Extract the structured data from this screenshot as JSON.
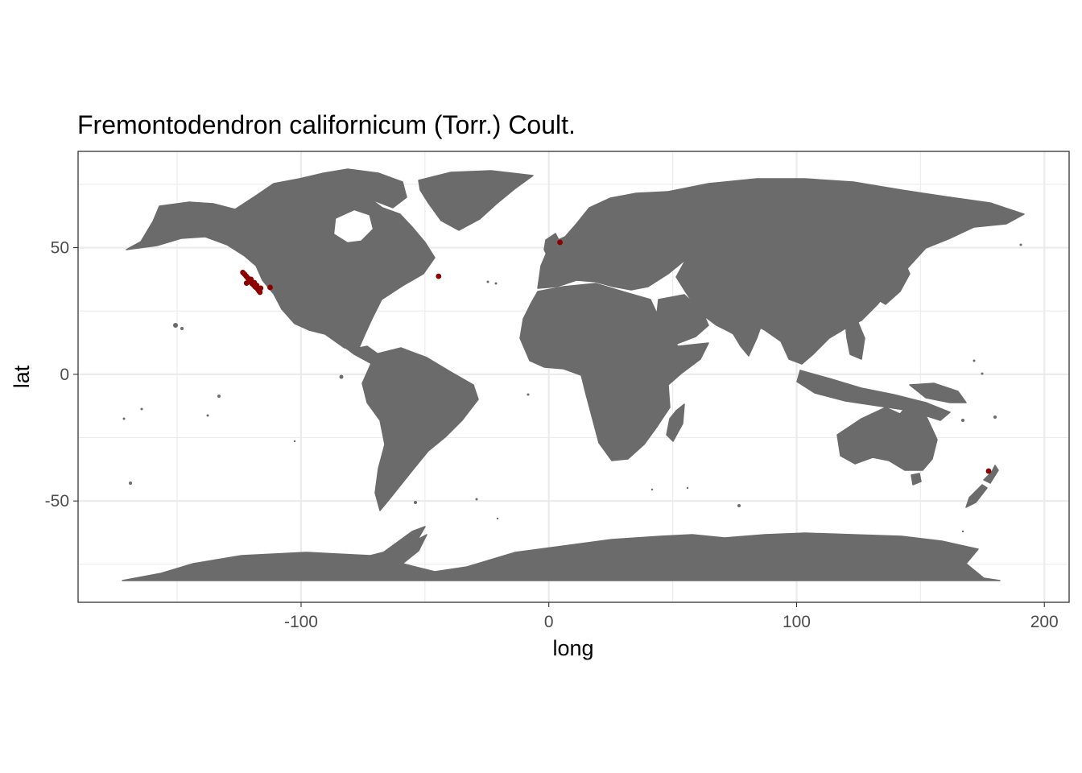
{
  "chart_data": {
    "type": "scatter",
    "title": "Fremontodendron californicum (Torr.) Coult.",
    "xlabel": "long",
    "ylabel": "lat",
    "xlim": [
      -190,
      210
    ],
    "ylim": [
      -90,
      88
    ],
    "x_ticks": [
      -100,
      0,
      100,
      200
    ],
    "y_ticks": [
      -50,
      0,
      50
    ],
    "x_tick_labels": [
      "-100",
      "0",
      "100",
      "200"
    ],
    "y_tick_labels": [
      "-50",
      "0",
      "50"
    ],
    "grid": true,
    "basemap": "world land polygons",
    "colors": {
      "land": "#6b6b6b",
      "points": "#8b0000",
      "panel_border": "#333333",
      "grid": "#ebebeb"
    },
    "series": [
      {
        "points": [
          {
            "x": -123.5,
            "y": 40.2
          },
          {
            "x": -122.8,
            "y": 39.5
          },
          {
            "x": -122.2,
            "y": 38.8
          },
          {
            "x": -121.5,
            "y": 38.0
          },
          {
            "x": -121.0,
            "y": 37.2
          },
          {
            "x": -120.5,
            "y": 36.5
          },
          {
            "x": -119.8,
            "y": 35.8
          },
          {
            "x": -119.2,
            "y": 35.3
          },
          {
            "x": -118.6,
            "y": 34.6
          },
          {
            "x": -118.1,
            "y": 34.2
          },
          {
            "x": -117.5,
            "y": 33.6
          },
          {
            "x": -117.0,
            "y": 32.9
          },
          {
            "x": -116.6,
            "y": 32.4
          },
          {
            "x": -120.2,
            "y": 37.5
          },
          {
            "x": -118.9,
            "y": 36.2
          },
          {
            "x": -117.9,
            "y": 35.1
          },
          {
            "x": -116.3,
            "y": 34.0
          },
          {
            "x": -122.0,
            "y": 36.0
          },
          {
            "x": -112.5,
            "y": 34.3
          },
          {
            "x": -44.5,
            "y": 38.7
          },
          {
            "x": 4.5,
            "y": 52.1
          },
          {
            "x": 177.5,
            "y": -38.2
          }
        ]
      }
    ]
  }
}
